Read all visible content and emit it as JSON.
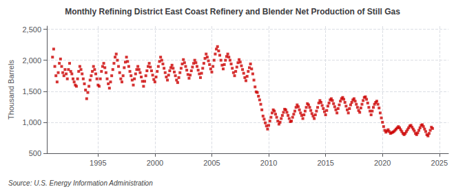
{
  "chart_data": {
    "type": "scatter",
    "title": "Monthly Refining District East Coast Refinery and Blender Net Production of Still Gas",
    "ylabel": "Thousand Barrels",
    "annotations": [
      "Source: U.S. Energy Information Administration"
    ],
    "color": "#CC0000",
    "marker": "square",
    "grid": true,
    "xlim": [
      1990.5,
      2025.8
    ],
    "xticks": [
      1995,
      2000,
      2005,
      2010,
      2015,
      2020,
      2025
    ],
    "ylim": [
      500,
      2550
    ],
    "yticks": [
      500,
      {
        "value": 1000,
        "label": "1,000"
      },
      {
        "value": 1500,
        "label": "1,500"
      },
      {
        "value": 2000,
        "label": "2,000"
      },
      {
        "value": 2500,
        "label": "2,500"
      }
    ],
    "x": [
      1991.0,
      1991.1,
      1991.2,
      1991.3,
      1991.4,
      1991.5,
      1991.6,
      1991.7,
      1991.8,
      1991.9,
      1992.0,
      1992.1,
      1992.2,
      1992.3,
      1992.4,
      1992.5,
      1992.6,
      1992.7,
      1992.8,
      1992.9,
      1993.0,
      1993.1,
      1993.2,
      1993.3,
      1993.4,
      1993.5,
      1993.6,
      1993.7,
      1993.8,
      1993.9,
      1994.0,
      1994.1,
      1994.2,
      1994.3,
      1994.4,
      1994.5,
      1994.6,
      1994.7,
      1994.8,
      1994.9,
      1995.0,
      1995.1,
      1995.2,
      1995.3,
      1995.4,
      1995.5,
      1995.6,
      1995.7,
      1995.8,
      1995.9,
      1996.0,
      1996.1,
      1996.2,
      1996.3,
      1996.4,
      1996.5,
      1996.6,
      1996.7,
      1996.8,
      1996.9,
      1997.0,
      1997.1,
      1997.2,
      1997.3,
      1997.4,
      1997.5,
      1997.6,
      1997.7,
      1997.8,
      1997.9,
      1998.0,
      1998.1,
      1998.2,
      1998.3,
      1998.4,
      1998.5,
      1998.6,
      1998.7,
      1998.8,
      1998.9,
      1999.0,
      1999.1,
      1999.2,
      1999.3,
      1999.4,
      1999.5,
      1999.6,
      1999.7,
      1999.8,
      1999.9,
      2000.0,
      2000.1,
      2000.2,
      2000.3,
      2000.4,
      2000.5,
      2000.6,
      2000.7,
      2000.8,
      2000.9,
      2001.0,
      2001.1,
      2001.2,
      2001.3,
      2001.4,
      2001.5,
      2001.6,
      2001.7,
      2001.8,
      2001.9,
      2002.0,
      2002.1,
      2002.2,
      2002.3,
      2002.4,
      2002.5,
      2002.6,
      2002.7,
      2002.8,
      2002.9,
      2003.0,
      2003.1,
      2003.2,
      2003.3,
      2003.4,
      2003.5,
      2003.6,
      2003.7,
      2003.8,
      2003.9,
      2004.0,
      2004.1,
      2004.2,
      2004.3,
      2004.4,
      2004.5,
      2004.6,
      2004.7,
      2004.8,
      2004.9,
      2005.0,
      2005.1,
      2005.2,
      2005.3,
      2005.4,
      2005.5,
      2005.6,
      2005.7,
      2005.8,
      2005.9,
      2006.0,
      2006.1,
      2006.2,
      2006.3,
      2006.4,
      2006.5,
      2006.6,
      2006.7,
      2006.8,
      2006.9,
      2007.0,
      2007.1,
      2007.2,
      2007.3,
      2007.4,
      2007.5,
      2007.6,
      2007.7,
      2007.8,
      2007.9,
      2008.0,
      2008.1,
      2008.2,
      2008.3,
      2008.4,
      2008.5,
      2008.6,
      2008.7,
      2008.8,
      2008.9,
      2009.0,
      2009.1,
      2009.2,
      2009.3,
      2009.4,
      2009.5,
      2009.6,
      2009.7,
      2009.8,
      2009.9,
      2010.0,
      2010.1,
      2010.2,
      2010.3,
      2010.4,
      2010.5,
      2010.6,
      2010.7,
      2010.8,
      2010.9,
      2011.0,
      2011.1,
      2011.2,
      2011.3,
      2011.4,
      2011.5,
      2011.6,
      2011.7,
      2011.8,
      2011.9,
      2012.0,
      2012.1,
      2012.2,
      2012.3,
      2012.4,
      2012.5,
      2012.6,
      2012.7,
      2012.8,
      2012.9,
      2013.0,
      2013.1,
      2013.2,
      2013.3,
      2013.4,
      2013.5,
      2013.6,
      2013.7,
      2013.8,
      2013.9,
      2014.0,
      2014.1,
      2014.2,
      2014.3,
      2014.4,
      2014.5,
      2014.6,
      2014.7,
      2014.8,
      2014.9,
      2015.0,
      2015.1,
      2015.2,
      2015.3,
      2015.4,
      2015.5,
      2015.6,
      2015.7,
      2015.8,
      2015.9,
      2016.0,
      2016.1,
      2016.2,
      2016.3,
      2016.4,
      2016.5,
      2016.6,
      2016.7,
      2016.8,
      2016.9,
      2017.0,
      2017.1,
      2017.2,
      2017.3,
      2017.4,
      2017.5,
      2017.6,
      2017.7,
      2017.8,
      2017.9,
      2018.0,
      2018.1,
      2018.2,
      2018.3,
      2018.4,
      2018.5,
      2018.6,
      2018.7,
      2018.8,
      2018.9,
      2019.0,
      2019.1,
      2019.2,
      2019.3,
      2019.4,
      2019.5,
      2019.6,
      2019.7,
      2019.8,
      2019.9,
      2020.0,
      2020.1,
      2020.2,
      2020.3,
      2020.4,
      2020.5,
      2020.6,
      2020.7,
      2020.8,
      2020.9,
      2021.0,
      2021.1,
      2021.2,
      2021.3,
      2021.4,
      2021.5,
      2021.6,
      2021.7,
      2021.8,
      2021.9,
      2022.0,
      2022.1,
      2022.2,
      2022.3,
      2022.4,
      2022.5,
      2022.6,
      2022.7,
      2022.8,
      2022.9,
      2023.0,
      2023.1,
      2023.2,
      2023.3,
      2023.4,
      2023.5,
      2023.6,
      2023.7,
      2023.8,
      2023.9,
      2024.0,
      2024.1,
      2024.2,
      2024.3,
      2024.4
    ],
    "values": [
      2050,
      2180,
      1900,
      1750,
      1650,
      1800,
      1950,
      2020,
      1900,
      1800,
      1750,
      1850,
      1780,
      1700,
      1850,
      1950,
      1820,
      1780,
      1700,
      1650,
      1600,
      1580,
      1700,
      1820,
      1900,
      1850,
      1780,
      1700,
      1620,
      1520,
      1380,
      1480,
      1580,
      1680,
      1750,
      1820,
      1900,
      1850,
      1780,
      1700,
      1600,
      1580,
      1700,
      1820,
      1900,
      1950,
      1880,
      1800,
      1700,
      1620,
      1550,
      1650,
      1750,
      1850,
      1950,
      2050,
      2100,
      2000,
      1900,
      1800,
      1700,
      1650,
      1750,
      1880,
      1970,
      2050,
      1980,
      1900,
      1820,
      1750,
      1680,
      1600,
      1700,
      1780,
      1850,
      1900,
      1850,
      1800,
      1730,
      1660,
      1580,
      1660,
      1750,
      1830,
      1900,
      1950,
      1890,
      1830,
      1760,
      1690,
      1650,
      1730,
      1820,
      1900,
      1980,
      2050,
      2000,
      1940,
      1870,
      1800,
      1730,
      1680,
      1760,
      1830,
      1880,
      1920,
      1870,
      1810,
      1750,
      1680,
      1640,
      1720,
      1800,
      1870,
      1940,
      2010,
      1960,
      1900,
      1840,
      1770,
      1710,
      1760,
      1830,
      1890,
      1950,
      2000,
      1960,
      1900,
      1840,
      1780,
      1720,
      1790,
      1870,
      1950,
      2030,
      2100,
      2050,
      1990,
      1930,
      1860,
      1810,
      1900,
      2000,
      2100,
      2180,
      2220,
      2150,
      2080,
      2000,
      1920,
      1860,
      1930,
      2000,
      2060,
      2100,
      2050,
      2000,
      1940,
      1870,
      1800,
      1750,
      1820,
      1890,
      1960,
      2010,
      1970,
      1910,
      1850,
      1790,
      1720,
      1670,
      1740,
      1820,
      1880,
      1940,
      1860,
      1780,
      1680,
      1570,
      1490,
      1480,
      1420,
      1360,
      1290,
      1200,
      1100,
      1050,
      990,
      940,
      890,
      950,
      1020,
      1080,
      1150,
      1200,
      1180,
      1130,
      1080,
      1020,
      970,
      1000,
      1060,
      1110,
      1160,
      1210,
      1200,
      1160,
      1110,
      1060,
      1010,
      1020,
      1080,
      1130,
      1180,
      1240,
      1280,
      1250,
      1200,
      1150,
      1110,
      1060,
      1120,
      1180,
      1240,
      1300,
      1280,
      1240,
      1190,
      1140,
      1100,
      1060,
      1120,
      1180,
      1240,
      1310,
      1350,
      1320,
      1270,
      1220,
      1170,
      1120,
      1190,
      1260,
      1310,
      1360,
      1380,
      1350,
      1300,
      1250,
      1200,
      1150,
      1220,
      1280,
      1340,
      1380,
      1400,
      1370,
      1320,
      1260,
      1200,
      1150,
      1220,
      1280,
      1320,
      1360,
      1380,
      1340,
      1290,
      1240,
      1190,
      1160,
      1230,
      1290,
      1350,
      1400,
      1410,
      1370,
      1310,
      1240,
      1180,
      1120,
      1180,
      1240,
      1290,
      1320,
      1340,
      1290,
      1230,
      1150,
      1070,
      1000,
      930,
      870,
      840,
      860,
      880,
      850,
      820,
      830,
      840,
      850,
      870,
      890,
      910,
      930,
      910,
      880,
      850,
      820,
      800,
      820,
      850,
      880,
      910,
      940,
      950,
      920,
      890,
      860,
      820,
      800,
      830,
      870,
      910,
      950,
      960,
      930,
      890,
      850,
      800,
      780,
      820,
      870,
      920,
      900
    ]
  }
}
